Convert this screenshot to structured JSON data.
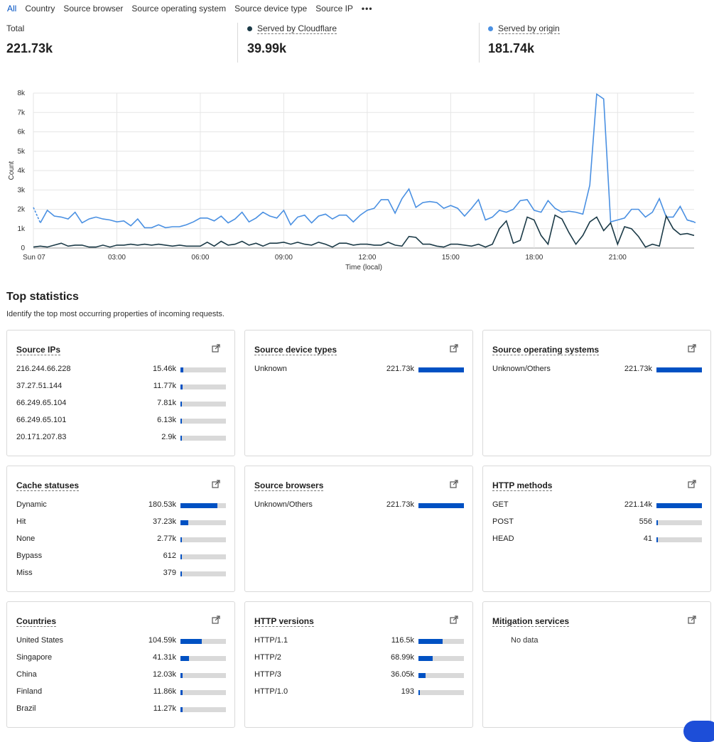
{
  "tabs": [
    "All",
    "Country",
    "Source browser",
    "Source operating system",
    "Source device type",
    "Source IP"
  ],
  "more_label": "•••",
  "stats": {
    "total": {
      "label": "Total",
      "value": "221.73k"
    },
    "cloudflare": {
      "label": "Served by Cloudflare",
      "value": "39.99k",
      "color": "#1b3a47"
    },
    "origin": {
      "label": "Served by origin",
      "value": "181.74k",
      "color": "#4a90e2"
    }
  },
  "chart_data": {
    "type": "line",
    "xlabel": "Time (local)",
    "ylabel": "Count",
    "y_ticks": [
      "0",
      "1k",
      "2k",
      "3k",
      "4k",
      "5k",
      "6k",
      "7k",
      "8k"
    ],
    "ylim": [
      0,
      8000
    ],
    "x_ticks": [
      "Sun 07",
      "03:00",
      "06:00",
      "09:00",
      "12:00",
      "15:00",
      "18:00",
      "21:00"
    ],
    "x_tick_hours": [
      0,
      3,
      6,
      9,
      12,
      15,
      18,
      21
    ],
    "xlim_hours": [
      0,
      23.75
    ],
    "grid": true,
    "series": [
      {
        "name": "Served by origin",
        "color": "#4a90e2",
        "values": [
          2100,
          1300,
          1950,
          1650,
          1600,
          1500,
          1850,
          1300,
          1500,
          1600,
          1500,
          1450,
          1350,
          1400,
          1150,
          1500,
          1050,
          1050,
          1200,
          1050,
          1100,
          1100,
          1200,
          1350,
          1550,
          1550,
          1400,
          1650,
          1300,
          1500,
          1850,
          1350,
          1550,
          1850,
          1650,
          1550,
          1950,
          1200,
          1600,
          1700,
          1300,
          1650,
          1750,
          1500,
          1700,
          1700,
          1350,
          1700,
          1950,
          2050,
          2500,
          2500,
          1800,
          2550,
          3050,
          2100,
          2350,
          2400,
          2350,
          2050,
          2200,
          2050,
          1650,
          2050,
          2500,
          1450,
          1600,
          1950,
          1850,
          2000,
          2450,
          2500,
          1950,
          1850,
          2450,
          2050,
          1850,
          1900,
          1850,
          1750,
          3250,
          7950,
          7700,
          1350,
          1450,
          1550,
          2000,
          2000,
          1600,
          1850,
          2550,
          1600,
          1600,
          2150,
          1450,
          1350
        ]
      },
      {
        "name": "Served by Cloudflare",
        "color": "#1b3a47",
        "values": [
          50,
          100,
          50,
          150,
          250,
          100,
          150,
          150,
          50,
          50,
          150,
          50,
          150,
          150,
          200,
          150,
          200,
          150,
          200,
          150,
          100,
          150,
          100,
          100,
          100,
          300,
          100,
          350,
          150,
          200,
          350,
          150,
          250,
          100,
          250,
          250,
          300,
          200,
          300,
          200,
          150,
          300,
          200,
          50,
          250,
          250,
          150,
          200,
          200,
          150,
          150,
          300,
          150,
          100,
          600,
          550,
          200,
          200,
          100,
          50,
          200,
          200,
          150,
          100,
          200,
          50,
          200,
          1000,
          1400,
          250,
          400,
          1600,
          1450,
          650,
          200,
          1700,
          1500,
          800,
          200,
          650,
          1350,
          1600,
          900,
          1300,
          200,
          1100,
          1000,
          600,
          50,
          200,
          100,
          1650,
          1000,
          700,
          750,
          650
        ]
      }
    ]
  },
  "top": {
    "title": "Top statistics",
    "subtitle": "Identify the top most occurring properties of incoming requests.",
    "no_data": "No data",
    "cards": [
      {
        "title": "Source IPs",
        "rows": [
          {
            "k": "216.244.66.228",
            "v": "15.46k",
            "pct": 0.07
          },
          {
            "k": "37.27.51.144",
            "v": "11.77k",
            "pct": 0.053
          },
          {
            "k": "66.249.65.104",
            "v": "7.81k",
            "pct": 0.035
          },
          {
            "k": "66.249.65.101",
            "v": "6.13k",
            "pct": 0.028
          },
          {
            "k": "20.171.207.83",
            "v": "2.9k",
            "pct": 0.013
          }
        ]
      },
      {
        "title": "Source device types",
        "rows": [
          {
            "k": "Unknown",
            "v": "221.73k",
            "pct": 1.0
          }
        ]
      },
      {
        "title": "Source operating systems",
        "rows": [
          {
            "k": "Unknown/Others",
            "v": "221.73k",
            "pct": 1.0
          }
        ]
      },
      {
        "title": "Cache statuses",
        "rows": [
          {
            "k": "Dynamic",
            "v": "180.53k",
            "pct": 0.814
          },
          {
            "k": "Hit",
            "v": "37.23k",
            "pct": 0.168
          },
          {
            "k": "None",
            "v": "2.77k",
            "pct": 0.012
          },
          {
            "k": "Bypass",
            "v": "612",
            "pct": 0.003
          },
          {
            "k": "Miss",
            "v": "379",
            "pct": 0.002
          }
        ]
      },
      {
        "title": "Source browsers",
        "rows": [
          {
            "k": "Unknown/Others",
            "v": "221.73k",
            "pct": 1.0
          }
        ]
      },
      {
        "title": "HTTP methods",
        "rows": [
          {
            "k": "GET",
            "v": "221.14k",
            "pct": 0.997
          },
          {
            "k": "POST",
            "v": "556",
            "pct": 0.003
          },
          {
            "k": "HEAD",
            "v": "41",
            "pct": 0.0002
          }
        ]
      },
      {
        "title": "Countries",
        "rows": [
          {
            "k": "United States",
            "v": "104.59k",
            "pct": 0.472
          },
          {
            "k": "Singapore",
            "v": "41.31k",
            "pct": 0.186
          },
          {
            "k": "China",
            "v": "12.03k",
            "pct": 0.054
          },
          {
            "k": "Finland",
            "v": "11.86k",
            "pct": 0.053
          },
          {
            "k": "Brazil",
            "v": "11.27k",
            "pct": 0.051
          }
        ]
      },
      {
        "title": "HTTP versions",
        "rows": [
          {
            "k": "HTTP/1.1",
            "v": "116.5k",
            "pct": 0.525
          },
          {
            "k": "HTTP/2",
            "v": "68.99k",
            "pct": 0.311
          },
          {
            "k": "HTTP/3",
            "v": "36.05k",
            "pct": 0.163
          },
          {
            "k": "HTTP/1.0",
            "v": "193",
            "pct": 0.001
          }
        ]
      },
      {
        "title": "Mitigation services",
        "rows": []
      }
    ]
  }
}
